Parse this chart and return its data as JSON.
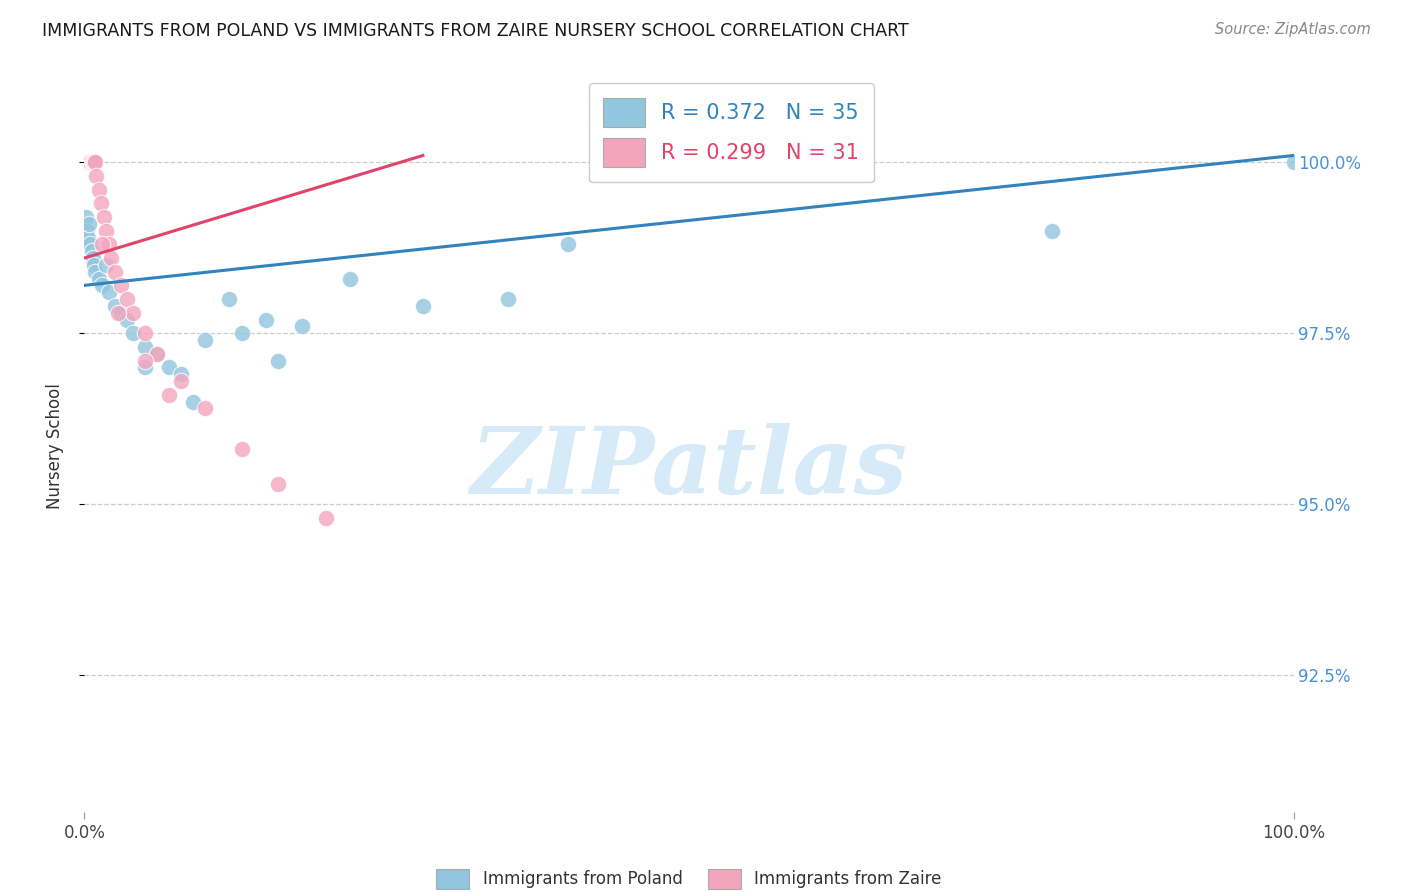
{
  "title": "IMMIGRANTS FROM POLAND VS IMMIGRANTS FROM ZAIRE NURSERY SCHOOL CORRELATION CHART",
  "source": "Source: ZipAtlas.com",
  "ylabel": "Nursery School",
  "ytick_values": [
    1.0,
    0.975,
    0.95,
    0.925
  ],
  "ytick_labels": [
    "100.0%",
    "97.5%",
    "95.0%",
    "92.5%"
  ],
  "legend_blue": "R = 0.372   N = 35",
  "legend_pink": "R = 0.299   N = 31",
  "legend_label_blue": "Immigrants from Poland",
  "legend_label_pink": "Immigrants from Zaire",
  "blue_color": "#92c5de",
  "pink_color": "#f4a5be",
  "blue_line_color": "#3182bd",
  "pink_line_color": "#e0446a",
  "background_color": "#ffffff",
  "watermark_text": "ZIPatlas",
  "watermark_color": "#d6eaf8",
  "xlim": [
    0.0,
    1.0
  ],
  "ylim": [
    0.905,
    1.012
  ],
  "poland_x": [
    0.001,
    0.002,
    0.003,
    0.004,
    0.005,
    0.006,
    0.007,
    0.008,
    0.009,
    0.012,
    0.015,
    0.018,
    0.02,
    0.025,
    0.03,
    0.035,
    0.04,
    0.05,
    0.06,
    0.07,
    0.08,
    0.1,
    0.12,
    0.15,
    0.18,
    0.22,
    0.28,
    0.05,
    0.09,
    0.13,
    0.16,
    0.35,
    0.4,
    0.8,
    1.0
  ],
  "poland_y": [
    0.992,
    0.99,
    0.989,
    0.991,
    0.988,
    0.987,
    0.986,
    0.985,
    0.984,
    0.983,
    0.982,
    0.985,
    0.981,
    0.979,
    0.978,
    0.977,
    0.975,
    0.973,
    0.972,
    0.97,
    0.969,
    0.974,
    0.98,
    0.977,
    0.976,
    0.983,
    0.979,
    0.97,
    0.965,
    0.975,
    0.971,
    0.98,
    0.988,
    0.99,
    1.0
  ],
  "zaire_x": [
    0.002,
    0.003,
    0.004,
    0.005,
    0.005,
    0.006,
    0.007,
    0.008,
    0.009,
    0.01,
    0.012,
    0.014,
    0.016,
    0.018,
    0.02,
    0.022,
    0.025,
    0.03,
    0.035,
    0.04,
    0.05,
    0.06,
    0.08,
    0.1,
    0.13,
    0.16,
    0.2,
    0.028,
    0.015,
    0.05,
    0.07
  ],
  "zaire_y": [
    1.0,
    1.0,
    1.0,
    1.0,
    1.0,
    1.0,
    1.0,
    1.0,
    1.0,
    0.998,
    0.996,
    0.994,
    0.992,
    0.99,
    0.988,
    0.986,
    0.984,
    0.982,
    0.98,
    0.978,
    0.975,
    0.972,
    0.968,
    0.964,
    0.958,
    0.953,
    0.948,
    0.978,
    0.988,
    0.971,
    0.966
  ],
  "blue_line_x": [
    0.0,
    1.0
  ],
  "blue_line_y": [
    0.982,
    1.001
  ],
  "pink_line_x": [
    0.0,
    0.28
  ],
  "pink_line_y": [
    0.986,
    1.001
  ]
}
